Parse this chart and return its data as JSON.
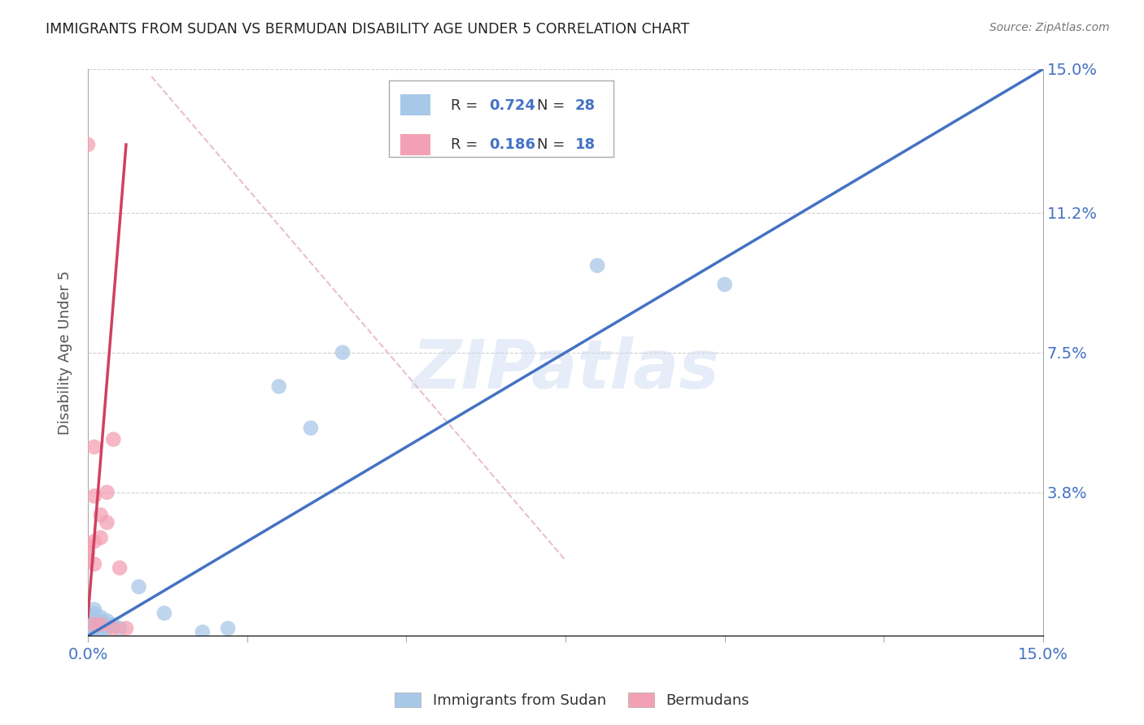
{
  "title": "IMMIGRANTS FROM SUDAN VS BERMUDAN DISABILITY AGE UNDER 5 CORRELATION CHART",
  "source": "Source: ZipAtlas.com",
  "ylabel": "Disability Age Under 5",
  "xlim": [
    0.0,
    0.15
  ],
  "ylim": [
    0.0,
    0.15
  ],
  "watermark": "ZIPatlas",
  "sudan_R": "0.724",
  "sudan_N": "28",
  "bermuda_R": "0.186",
  "bermuda_N": "18",
  "sudan_color": "#a8c8e8",
  "bermuda_color": "#f4a0b4",
  "sudan_line_color": "#4472c4",
  "bermuda_line_color": "#d04060",
  "diagonal_color": "#e8b8c8",
  "grid_color": "#cccccc",
  "axis_color": "#4472c4",
  "sudan_scatter_x": [
    0.0,
    0.0,
    0.001,
    0.001,
    0.001,
    0.001,
    0.001,
    0.001,
    0.001,
    0.002,
    0.002,
    0.002,
    0.002,
    0.002,
    0.003,
    0.003,
    0.003,
    0.004,
    0.005,
    0.008,
    0.012,
    0.018,
    0.022,
    0.03,
    0.035,
    0.04,
    0.08,
    0.1
  ],
  "sudan_scatter_y": [
    0.001,
    0.002,
    0.001,
    0.002,
    0.003,
    0.004,
    0.005,
    0.006,
    0.007,
    0.001,
    0.002,
    0.003,
    0.004,
    0.005,
    0.002,
    0.003,
    0.004,
    0.003,
    0.002,
    0.013,
    0.006,
    0.001,
    0.002,
    0.066,
    0.055,
    0.075,
    0.098,
    0.093
  ],
  "bermuda_scatter_x": [
    0.0,
    0.0,
    0.0,
    0.0,
    0.001,
    0.001,
    0.001,
    0.001,
    0.001,
    0.002,
    0.002,
    0.002,
    0.003,
    0.003,
    0.004,
    0.004,
    0.005,
    0.006
  ],
  "bermuda_scatter_y": [
    0.13,
    0.02,
    0.022,
    0.024,
    0.05,
    0.037,
    0.025,
    0.019,
    0.003,
    0.032,
    0.026,
    0.003,
    0.038,
    0.03,
    0.052,
    0.002,
    0.018,
    0.002
  ],
  "sudan_line_x": [
    0.0,
    0.15
  ],
  "sudan_line_y": [
    0.0,
    0.15
  ],
  "bermuda_line_x": [
    0.0,
    0.006
  ],
  "bermuda_line_y": [
    0.005,
    0.13
  ],
  "diag_line_x": [
    0.01,
    0.075
  ],
  "diag_line_y": [
    0.148,
    0.02
  ]
}
